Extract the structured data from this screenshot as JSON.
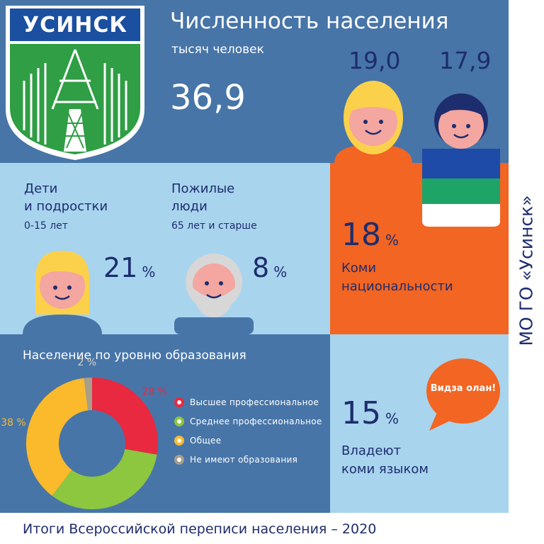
{
  "header": {
    "title": "Численность населения",
    "subtitle": "тысяч человек",
    "total": "36,9",
    "female": "19,0",
    "male": "17,9",
    "emblem_text": "УСИНСК"
  },
  "children": {
    "title_line1": "Дети",
    "title_line2": "и подростки",
    "age": "0-15 лет",
    "value": "21",
    "unit": "%"
  },
  "elderly": {
    "title_line1": "Пожилые",
    "title_line2": "люди",
    "age": "65 лет и старше",
    "value": "8",
    "unit": "%"
  },
  "komi": {
    "value": "18",
    "unit": "%",
    "label_line1": "Коми",
    "label_line2": "национальности"
  },
  "language": {
    "value": "15",
    "unit": "%",
    "label_line1": "Владеют",
    "label_line2": "коми языком",
    "bubble": "Видза олан!"
  },
  "side_label": "МО ГО «Усинск»",
  "footer": "Итоги Всероссийской переписи населения – 2020",
  "colors": {
    "top_blue": "#4775a8",
    "light_blue": "#a8d4ee",
    "orange": "#f26522",
    "navy": "#1e2d6e",
    "emblem_green": "#2f9e44",
    "emblem_border": "#1b4fa0"
  },
  "chart_data": {
    "type": "pie",
    "title": "Население по уровню образования",
    "categories": [
      "Высшее профессиональное",
      "Среднее профессиональное",
      "Общее",
      "Не имеют образования"
    ],
    "values": [
      28,
      33,
      38,
      2
    ],
    "labels": [
      "28 %",
      "33 %",
      "38 %",
      "2 %"
    ],
    "colors": [
      "#e8293f",
      "#8dc63f",
      "#fbb92c",
      "#a89e8a"
    ]
  }
}
